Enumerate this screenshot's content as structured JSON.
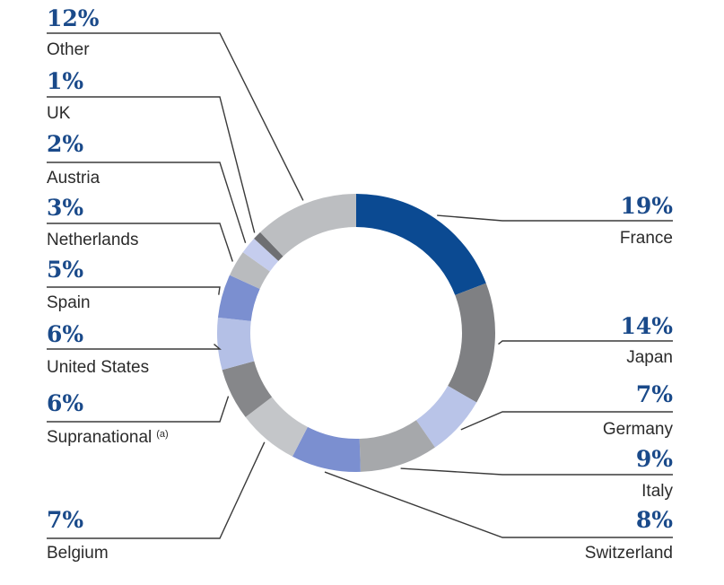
{
  "chart_data": {
    "type": "pie",
    "donut": true,
    "legend": "leader-line labels around ring",
    "slices": [
      {
        "label": "France",
        "value": 19,
        "display": "19%",
        "color": "#0b4a92"
      },
      {
        "label": "Japan",
        "value": 14,
        "display": "14%",
        "color": "#7f8083"
      },
      {
        "label": "Germany",
        "value": 7,
        "display": "7%",
        "color": "#b9c4e8"
      },
      {
        "label": "Italy",
        "value": 9,
        "display": "9%",
        "color": "#a6a8ab"
      },
      {
        "label": "Switzerland",
        "value": 8,
        "display": "8%",
        "color": "#7b8fd0"
      },
      {
        "label": "Belgium",
        "value": 7,
        "display": "7%",
        "color": "#c4c6c9"
      },
      {
        "label": "Supranational",
        "value": 6,
        "display": "6%",
        "note": "(a)",
        "color": "#86878a"
      },
      {
        "label": "United States",
        "value": 6,
        "display": "6%",
        "color": "#b4c0e6"
      },
      {
        "label": "Spain",
        "value": 5,
        "display": "5%",
        "color": "#7b8fd0"
      },
      {
        "label": "Netherlands",
        "value": 3,
        "display": "3%",
        "color": "#b9bbbe"
      },
      {
        "label": "Austria",
        "value": 2,
        "display": "2%",
        "color": "#c5cdee"
      },
      {
        "label": "UK",
        "value": 1,
        "display": "1%",
        "color": "#6e6f72"
      },
      {
        "label": "Other",
        "value": 12,
        "display": "12%",
        "color": "#bcbec1"
      }
    ]
  }
}
